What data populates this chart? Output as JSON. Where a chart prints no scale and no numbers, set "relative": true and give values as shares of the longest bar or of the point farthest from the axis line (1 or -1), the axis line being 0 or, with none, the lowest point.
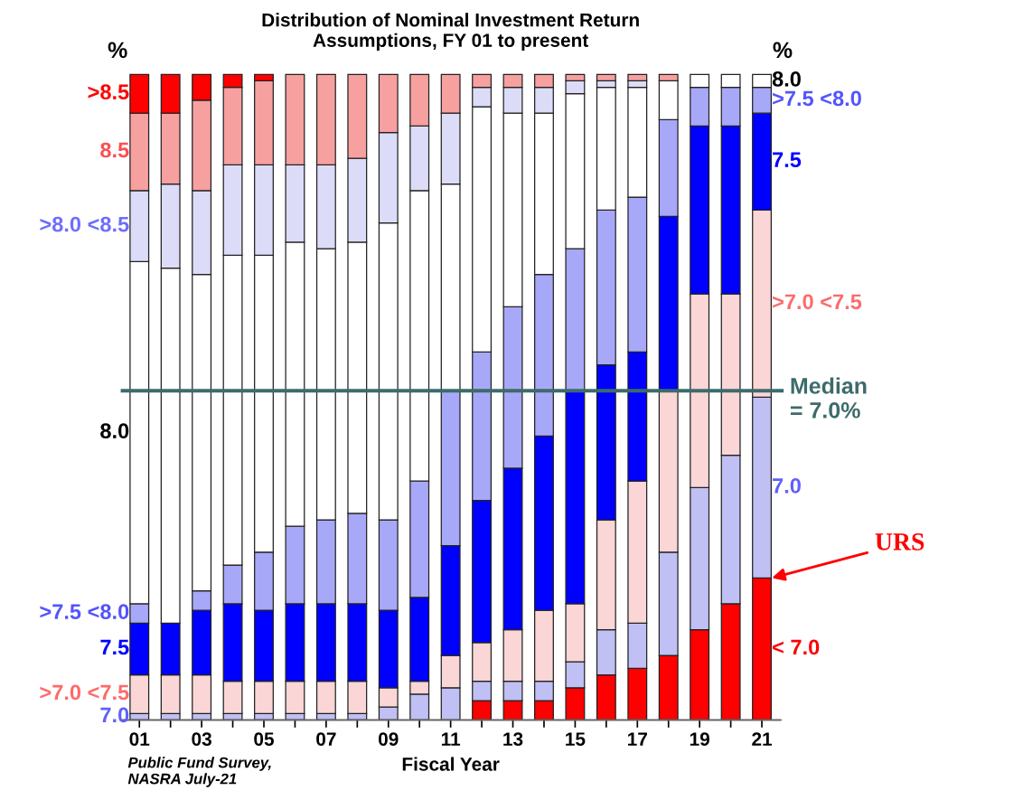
{
  "chart_data": {
    "type": "bar",
    "title": "Distribution of Nominal Investment Return\nAssumptions, FY 01 to present",
    "xlabel": "Fiscal Year",
    "stacked": true,
    "relative": true,
    "grid": false,
    "categories": [
      "01",
      null,
      "03",
      null,
      "05",
      null,
      "07",
      null,
      "09",
      null,
      "11",
      null,
      "13",
      null,
      "15",
      null,
      "17",
      null,
      "19",
      null,
      "21"
    ],
    "series": [
      {
        "name": "< 7.0",
        "color": "#ff0000",
        "values": [
          0,
          0,
          0,
          0,
          0,
          0,
          0,
          0,
          0,
          0,
          0,
          0.03,
          0.03,
          0.03,
          0.05,
          0.07,
          0.08,
          0.1,
          0.14,
          0.18,
          0.22
        ]
      },
      {
        "name": "7.0",
        "color": "#c0c0f4",
        "values": [
          0.01,
          0.01,
          0.01,
          0.01,
          0.01,
          0.01,
          0.01,
          0.01,
          0.02,
          0.04,
          0.05,
          0.03,
          0.03,
          0.03,
          0.04,
          0.07,
          0.07,
          0.16,
          0.22,
          0.23,
          0.28
        ]
      },
      {
        "name": ">7.0 <7.5",
        "color": "#fbd6d6",
        "values": [
          0.06,
          0.06,
          0.06,
          0.05,
          0.05,
          0.05,
          0.05,
          0.05,
          0.03,
          0.02,
          0.05,
          0.06,
          0.08,
          0.11,
          0.09,
          0.17,
          0.22,
          0.25,
          0.3,
          0.25,
          0.29
        ]
      },
      {
        "name": "7.5",
        "color": "#0000ff",
        "values": [
          0.08,
          0.08,
          0.1,
          0.12,
          0.11,
          0.12,
          0.12,
          0.12,
          0.12,
          0.13,
          0.17,
          0.22,
          0.25,
          0.27,
          0.33,
          0.24,
          0.2,
          0.27,
          0.26,
          0.26,
          0.15
        ]
      },
      {
        "name": ">7.5 <8.0",
        "color": "#a8a8f8",
        "values": [
          0.03,
          0,
          0.03,
          0.06,
          0.09,
          0.12,
          0.13,
          0.14,
          0.14,
          0.18,
          0.24,
          0.23,
          0.25,
          0.25,
          0.22,
          0.24,
          0.24,
          0.15,
          0.06,
          0.06,
          0.04
        ]
      },
      {
        "name": "8.0",
        "color": "#ffffff",
        "values": [
          0.53,
          0.55,
          0.49,
          0.48,
          0.46,
          0.44,
          0.42,
          0.42,
          0.46,
          0.45,
          0.32,
          0.38,
          0.3,
          0.25,
          0.24,
          0.19,
          0.17,
          0.06,
          0.02,
          0.02,
          0.02
        ]
      },
      {
        "name": ">8.0 <8.5",
        "color": "#dcdcf8",
        "values": [
          0.11,
          0.13,
          0.13,
          0.14,
          0.14,
          0.12,
          0.13,
          0.13,
          0.14,
          0.1,
          0.11,
          0.03,
          0.04,
          0.04,
          0.02,
          0.01,
          0.01,
          0,
          0,
          0,
          0
        ]
      },
      {
        "name": "8.5",
        "color": "#f7a0a0",
        "values": [
          0.12,
          0.11,
          0.14,
          0.12,
          0.13,
          0.14,
          0.14,
          0.13,
          0.09,
          0.08,
          0.06,
          0.02,
          0.02,
          0.02,
          0.01,
          0.01,
          0.01,
          0.01,
          0,
          0,
          0
        ]
      },
      {
        "name": ">8.5",
        "color": "#ff0000",
        "values": [
          0.06,
          0.06,
          0.04,
          0.02,
          0.01,
          0,
          0,
          0,
          0,
          0,
          0,
          0,
          0,
          0,
          0,
          0,
          0,
          0,
          0,
          0,
          0
        ]
      }
    ],
    "ref_lines": [
      {
        "axis": "y",
        "value": 0.51,
        "color": "#3d6b6b"
      }
    ],
    "annotations": [
      "%",
      "%",
      "Public Fund Survey,\nNASRA July-21",
      "Median\n= 7.0%",
      "URS"
    ]
  }
}
